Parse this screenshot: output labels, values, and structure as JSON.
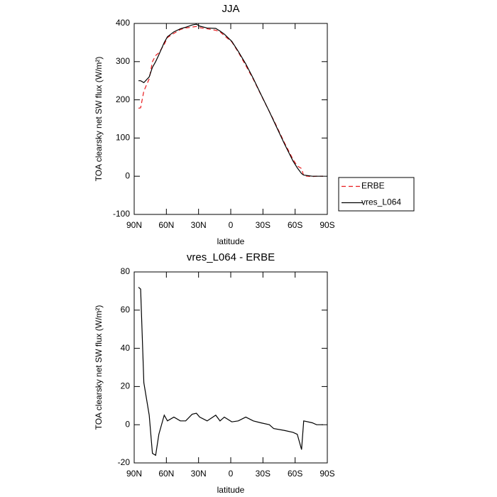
{
  "chart_data": [
    {
      "type": "line",
      "title": "JJA",
      "x_label": "latitude",
      "y_label": "TOA clearsky net SW flux (W/m²)",
      "x": [
        86,
        84,
        81,
        76,
        73,
        70,
        67,
        62,
        59,
        53,
        47,
        42,
        36,
        32,
        29,
        22,
        14,
        10,
        6,
        -1,
        -7,
        -14,
        -21,
        -28,
        -36,
        -40,
        -50,
        -58,
        -62,
        -66,
        -68,
        -76,
        -80,
        -86
      ],
      "xlim": [
        90,
        -90
      ],
      "xticks": [
        {
          "value": 90,
          "label": "90N"
        },
        {
          "value": 60,
          "label": "60N"
        },
        {
          "value": 30,
          "label": "30N"
        },
        0,
        {
          "value": -30,
          "label": "30S"
        },
        {
          "value": -60,
          "label": "60S"
        },
        {
          "value": -90,
          "label": "90S"
        }
      ],
      "ylim": [
        -100,
        400
      ],
      "yticks": [
        -100,
        0,
        100,
        200,
        300,
        400
      ],
      "legend": "right",
      "series": [
        {
          "name": "ERBE",
          "color": "#e8191c",
          "dashed": true,
          "values": [
            178,
            179,
            223,
            255,
            300,
            316,
            323,
            345,
            363,
            374,
            384,
            388,
            390.5,
            392,
            389,
            386,
            382,
            378,
            368,
            351.5,
            325,
            290,
            254,
            214,
            169,
            147,
            88,
            44,
            27,
            20,
            1,
            -1,
            0,
            0
          ]
        },
        {
          "name": "vres_L064",
          "color": "#000000",
          "dashed": false,
          "values": [
            250,
            250,
            245,
            260,
            285,
            300,
            318,
            350,
            365,
            378,
            386,
            390,
            396,
            398,
            393,
            388,
            387,
            380,
            372,
            353,
            327,
            294,
            256,
            215,
            169,
            145,
            85,
            40,
            22,
            7,
            3,
            0,
            0,
            0
          ]
        }
      ]
    },
    {
      "type": "line",
      "title": "vres_L064 - ERBE",
      "x_label": "latitude",
      "y_label": "TOA clearsky net SW flux (W/m²)",
      "x": [
        86,
        84,
        81,
        76,
        73,
        70,
        67,
        62,
        59,
        53,
        47,
        42,
        36,
        32,
        29,
        22,
        14,
        10,
        6,
        -1,
        -7,
        -14,
        -21,
        -28,
        -36,
        -40,
        -50,
        -58,
        -62,
        -66,
        -68,
        -76,
        -80,
        -86
      ],
      "xlim": [
        90,
        -90
      ],
      "xticks": [
        {
          "value": 90,
          "label": "90N"
        },
        {
          "value": 60,
          "label": "60N"
        },
        {
          "value": 30,
          "label": "30N"
        },
        0,
        {
          "value": -30,
          "label": "30S"
        },
        {
          "value": -60,
          "label": "60S"
        },
        {
          "value": -90,
          "label": "90S"
        }
      ],
      "ylim": [
        -20,
        80
      ],
      "yticks": [
        -20,
        0,
        20,
        40,
        60,
        80
      ],
      "color": "#000000",
      "values": [
        72,
        71,
        22,
        5,
        -15,
        -16,
        -5,
        5,
        2,
        4,
        2,
        2,
        5.5,
        6,
        4,
        2,
        5,
        2,
        4,
        1.5,
        2,
        4,
        2,
        1,
        0,
        -2,
        -3,
        -4,
        -5,
        -13,
        2,
        1,
        0,
        0
      ]
    }
  ]
}
